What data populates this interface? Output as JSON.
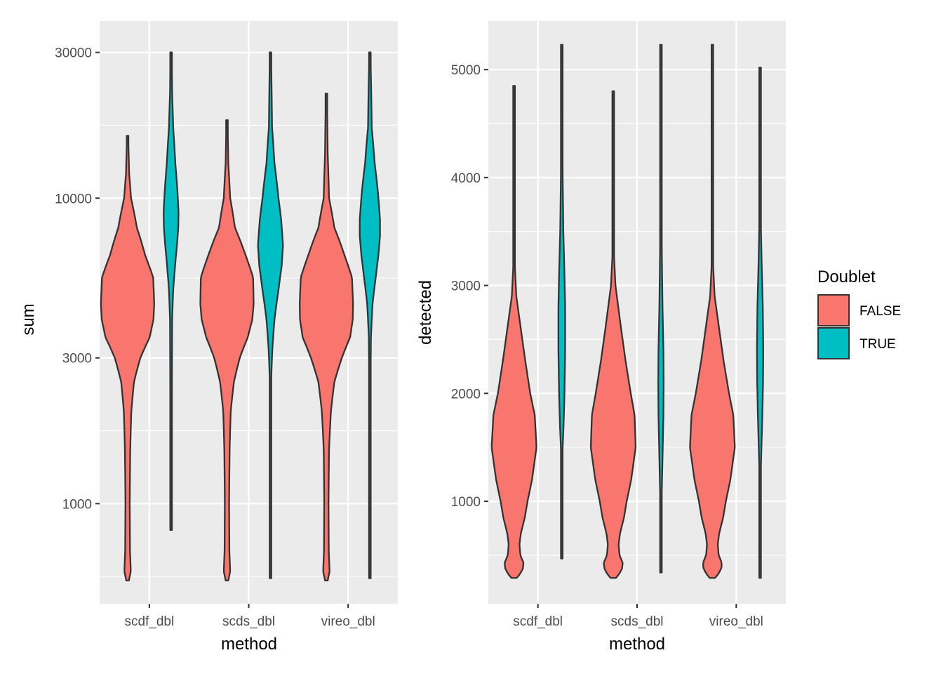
{
  "chart_data": [
    {
      "type": "violin",
      "panel": "left",
      "xlabel": "method",
      "ylabel": "sum",
      "yscale": "log10",
      "ylim": [
        470,
        38000
      ],
      "yticks": [
        1000,
        3000,
        10000,
        30000
      ],
      "ytick_labels": [
        "1000",
        "3000",
        "10000",
        "30000"
      ],
      "categories": [
        "scdf_dbl",
        "scds_dbl",
        "vireo_dbl"
      ],
      "series": [
        {
          "name": "FALSE",
          "values": [
            {
              "min": 560,
              "max": 16000,
              "profile": [
                [
                  560,
                  0.05
                ],
                [
                  600,
                  0.12
                ],
                [
                  700,
                  0.09
                ],
                [
                  1000,
                  0.08
                ],
                [
                  1500,
                  0.1
                ],
                [
                  2000,
                  0.14
                ],
                [
                  2500,
                  0.24
                ],
                [
                  3000,
                  0.48
                ],
                [
                  3500,
                  0.83
                ],
                [
                  4000,
                  0.97
                ],
                [
                  4500,
                  1.0
                ],
                [
                  5500,
                  0.96
                ],
                [
                  6500,
                  0.66
                ],
                [
                  8000,
                  0.35
                ],
                [
                  10000,
                  0.13
                ],
                [
                  12000,
                  0.06
                ],
                [
                  16000,
                  0.02
                ]
              ]
            },
            {
              "min": 560,
              "max": 18000,
              "profile": [
                [
                  560,
                  0.05
                ],
                [
                  600,
                  0.12
                ],
                [
                  700,
                  0.09
                ],
                [
                  1000,
                  0.08
                ],
                [
                  1500,
                  0.1
                ],
                [
                  2000,
                  0.14
                ],
                [
                  2500,
                  0.26
                ],
                [
                  3000,
                  0.48
                ],
                [
                  3500,
                  0.78
                ],
                [
                  4000,
                  0.95
                ],
                [
                  4500,
                  1.0
                ],
                [
                  5500,
                  0.98
                ],
                [
                  6500,
                  0.7
                ],
                [
                  8000,
                  0.3
                ],
                [
                  10000,
                  0.12
                ],
                [
                  13000,
                  0.05
                ],
                [
                  18000,
                  0.02
                ]
              ]
            },
            {
              "min": 560,
              "max": 22000,
              "profile": [
                [
                  560,
                  0.05
                ],
                [
                  600,
                  0.12
                ],
                [
                  700,
                  0.09
                ],
                [
                  1000,
                  0.08
                ],
                [
                  1500,
                  0.1
                ],
                [
                  2000,
                  0.17
                ],
                [
                  2500,
                  0.3
                ],
                [
                  3000,
                  0.58
                ],
                [
                  3500,
                  0.89
                ],
                [
                  4000,
                  0.99
                ],
                [
                  4500,
                  1.0
                ],
                [
                  5500,
                  0.96
                ],
                [
                  6500,
                  0.68
                ],
                [
                  8000,
                  0.3
                ],
                [
                  10000,
                  0.1
                ],
                [
                  14000,
                  0.05
                ],
                [
                  22000,
                  0.02
                ]
              ]
            }
          ]
        },
        {
          "name": "TRUE",
          "values": [
            {
              "min": 820,
              "max": 30000,
              "profile": [
                [
                  820,
                  0.02
                ],
                [
                  2000,
                  0.03
                ],
                [
                  4000,
                  0.04
                ],
                [
                  5000,
                  0.08
                ],
                [
                  6000,
                  0.15
                ],
                [
                  7000,
                  0.22
                ],
                [
                  8000,
                  0.27
                ],
                [
                  9000,
                  0.28
                ],
                [
                  10500,
                  0.24
                ],
                [
                  13000,
                  0.16
                ],
                [
                  17000,
                  0.08
                ],
                [
                  22000,
                  0.04
                ],
                [
                  30000,
                  0.02
                ]
              ]
            },
            {
              "min": 570,
              "max": 30000,
              "profile": [
                [
                  570,
                  0.02
                ],
                [
                  1500,
                  0.02
                ],
                [
                  2600,
                  0.03
                ],
                [
                  3200,
                  0.07
                ],
                [
                  4000,
                  0.15
                ],
                [
                  5000,
                  0.3
                ],
                [
                  6000,
                  0.42
                ],
                [
                  7000,
                  0.47
                ],
                [
                  8500,
                  0.4
                ],
                [
                  10000,
                  0.3
                ],
                [
                  13000,
                  0.15
                ],
                [
                  17000,
                  0.06
                ],
                [
                  30000,
                  0.02
                ]
              ]
            },
            {
              "min": 570,
              "max": 30000,
              "profile": [
                [
                  570,
                  0.02
                ],
                [
                  2000,
                  0.02
                ],
                [
                  3500,
                  0.04
                ],
                [
                  4500,
                  0.1
                ],
                [
                  5500,
                  0.22
                ],
                [
                  6500,
                  0.32
                ],
                [
                  7500,
                  0.38
                ],
                [
                  8500,
                  0.38
                ],
                [
                  10500,
                  0.3
                ],
                [
                  13000,
                  0.18
                ],
                [
                  17000,
                  0.07
                ],
                [
                  30000,
                  0.02
                ]
              ]
            }
          ]
        }
      ]
    },
    {
      "type": "violin",
      "panel": "right",
      "xlabel": "method",
      "ylabel": "detected",
      "yscale": "linear",
      "ylim": [
        50,
        5450
      ],
      "yticks": [
        1000,
        2000,
        3000,
        4000,
        5000
      ],
      "ytick_labels": [
        "1000",
        "2000",
        "3000",
        "4000",
        "5000"
      ],
      "categories": [
        "scdf_dbl",
        "scds_dbl",
        "vireo_dbl"
      ],
      "series": [
        {
          "name": "FALSE",
          "values": [
            {
              "min": 290,
              "max": 4850,
              "profile": [
                [
                  290,
                  0.12
                ],
                [
                  330,
                  0.28
                ],
                [
                  380,
                  0.4
                ],
                [
                  430,
                  0.42
                ],
                [
                  500,
                  0.28
                ],
                [
                  600,
                  0.24
                ],
                [
                  700,
                  0.3
                ],
                [
                  850,
                  0.48
                ],
                [
                  1000,
                  0.6
                ],
                [
                  1200,
                  0.8
                ],
                [
                  1500,
                  1.0
                ],
                [
                  1800,
                  0.92
                ],
                [
                  2000,
                  0.72
                ],
                [
                  2300,
                  0.5
                ],
                [
                  2600,
                  0.3
                ],
                [
                  2900,
                  0.1
                ],
                [
                  3200,
                  0.03
                ],
                [
                  4850,
                  0.02
                ]
              ]
            },
            {
              "min": 290,
              "max": 4800,
              "profile": [
                [
                  290,
                  0.12
                ],
                [
                  330,
                  0.28
                ],
                [
                  380,
                  0.4
                ],
                [
                  430,
                  0.42
                ],
                [
                  500,
                  0.28
                ],
                [
                  600,
                  0.24
                ],
                [
                  700,
                  0.3
                ],
                [
                  850,
                  0.48
                ],
                [
                  1000,
                  0.6
                ],
                [
                  1200,
                  0.8
                ],
                [
                  1500,
                  1.0
                ],
                [
                  1800,
                  0.95
                ],
                [
                  2000,
                  0.78
                ],
                [
                  2300,
                  0.55
                ],
                [
                  2600,
                  0.35
                ],
                [
                  3000,
                  0.1
                ],
                [
                  3300,
                  0.03
                ],
                [
                  4800,
                  0.02
                ]
              ]
            },
            {
              "min": 290,
              "max": 5230,
              "profile": [
                [
                  290,
                  0.12
                ],
                [
                  330,
                  0.28
                ],
                [
                  380,
                  0.4
                ],
                [
                  430,
                  0.42
                ],
                [
                  500,
                  0.28
                ],
                [
                  600,
                  0.24
                ],
                [
                  700,
                  0.3
                ],
                [
                  850,
                  0.48
                ],
                [
                  1000,
                  0.6
                ],
                [
                  1200,
                  0.8
                ],
                [
                  1500,
                  1.0
                ],
                [
                  1800,
                  0.93
                ],
                [
                  2000,
                  0.74
                ],
                [
                  2300,
                  0.5
                ],
                [
                  2600,
                  0.3
                ],
                [
                  2900,
                  0.1
                ],
                [
                  3200,
                  0.03
                ],
                [
                  5230,
                  0.02
                ]
              ]
            }
          ]
        },
        {
          "name": "TRUE",
          "values": [
            {
              "min": 470,
              "max": 5230,
              "profile": [
                [
                  470,
                  0.02
                ],
                [
                  1200,
                  0.02
                ],
                [
                  1500,
                  0.04
                ],
                [
                  1700,
                  0.08
                ],
                [
                  2000,
                  0.12
                ],
                [
                  2400,
                  0.15
                ],
                [
                  2800,
                  0.15
                ],
                [
                  3100,
                  0.12
                ],
                [
                  3500,
                  0.07
                ],
                [
                  4000,
                  0.04
                ],
                [
                  5230,
                  0.02
                ]
              ]
            },
            {
              "min": 340,
              "max": 5230,
              "profile": [
                [
                  340,
                  0.02
                ],
                [
                  900,
                  0.02
                ],
                [
                  1200,
                  0.05
                ],
                [
                  1500,
                  0.08
                ],
                [
                  1800,
                  0.11
                ],
                [
                  2100,
                  0.12
                ],
                [
                  2400,
                  0.11
                ],
                [
                  2800,
                  0.07
                ],
                [
                  3300,
                  0.04
                ],
                [
                  4000,
                  0.02
                ],
                [
                  5230,
                  0.02
                ]
              ]
            },
            {
              "min": 290,
              "max": 5020,
              "profile": [
                [
                  290,
                  0.02
                ],
                [
                  1200,
                  0.02
                ],
                [
                  1500,
                  0.06
                ],
                [
                  1800,
                  0.1
                ],
                [
                  2100,
                  0.13
                ],
                [
                  2400,
                  0.14
                ],
                [
                  2800,
                  0.12
                ],
                [
                  3200,
                  0.07
                ],
                [
                  3600,
                  0.03
                ],
                [
                  5020,
                  0.02
                ]
              ]
            }
          ]
        }
      ]
    }
  ],
  "legend": {
    "title": "Doublet",
    "entries": [
      {
        "label": "FALSE",
        "color": "#F8766D"
      },
      {
        "label": "TRUE",
        "color": "#00BFC4"
      }
    ]
  },
  "colors": {
    "panel_bg": "#EBEBEB",
    "grid_major": "#FFFFFF",
    "violin_outline": "#333333",
    "false_fill": "#F8766D",
    "true_fill": "#00BFC4"
  }
}
